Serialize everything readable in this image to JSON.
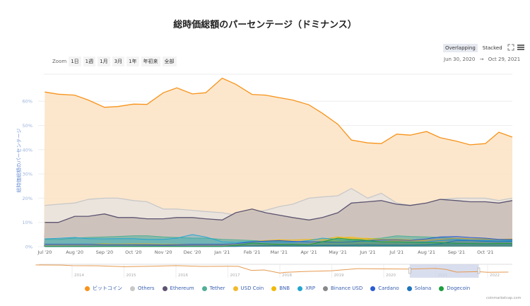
{
  "chart_data": {
    "type": "area",
    "title": "総時価総額のパーセンテージ（ドミナンス）",
    "ylabel": "総時価総額のパーセンテージ",
    "ylim": [
      0,
      70
    ],
    "yticks": [
      "0%",
      "10%",
      "20%",
      "30%",
      "40%",
      "50%",
      "60%"
    ],
    "ytick_values": [
      0,
      10,
      20,
      30,
      40,
      50,
      60
    ],
    "xlim": [
      "2020-06-30",
      "2021-10-29"
    ],
    "xticks": [
      {
        "date": "2020-07-01",
        "label": "Jul '20"
      },
      {
        "date": "2020-08-01",
        "label": "Aug '20"
      },
      {
        "date": "2020-09-01",
        "label": "Sep '20"
      },
      {
        "date": "2020-10-01",
        "label": "Oct '20"
      },
      {
        "date": "2020-11-01",
        "label": "Nov '20"
      },
      {
        "date": "2020-12-01",
        "label": "Dec '20"
      },
      {
        "date": "2021-01-01",
        "label": "Jan '21"
      },
      {
        "date": "2021-02-01",
        "label": "Feb '21"
      },
      {
        "date": "2021-03-01",
        "label": "Mar '21"
      },
      {
        "date": "2021-04-01",
        "label": "Apr '21"
      },
      {
        "date": "2021-05-01",
        "label": "May '21"
      },
      {
        "date": "2021-06-01",
        "label": "Jun '21"
      },
      {
        "date": "2021-07-01",
        "label": "Jul '21"
      },
      {
        "date": "2021-08-01",
        "label": "Aug '21"
      },
      {
        "date": "2021-09-01",
        "label": "Sep '21"
      },
      {
        "date": "2021-10-01",
        "label": "Oct '21"
      }
    ],
    "grid": true,
    "legend_position": "bottom",
    "x": [
      "2020-07-01",
      "2020-07-15",
      "2020-08-01",
      "2020-08-15",
      "2020-09-01",
      "2020-09-15",
      "2020-10-01",
      "2020-10-15",
      "2020-11-01",
      "2020-11-15",
      "2020-12-01",
      "2020-12-15",
      "2021-01-01",
      "2021-01-15",
      "2021-02-01",
      "2021-02-15",
      "2021-03-01",
      "2021-03-15",
      "2021-04-01",
      "2021-04-15",
      "2021-05-01",
      "2021-05-15",
      "2021-06-01",
      "2021-06-15",
      "2021-07-01",
      "2021-07-15",
      "2021-08-01",
      "2021-08-15",
      "2021-09-01",
      "2021-09-15",
      "2021-10-01",
      "2021-10-15",
      "2021-10-29"
    ],
    "series": [
      {
        "name": "ビットコイン",
        "color": "#f7931a",
        "fill": "#fbe3c4",
        "values": [
          63.8,
          62.9,
          62.5,
          60.5,
          57.5,
          57.8,
          58.8,
          58.7,
          63.5,
          65.5,
          63,
          63.5,
          69.5,
          67,
          62.8,
          62.5,
          61.5,
          60.5,
          58.5,
          55,
          50.5,
          44,
          42.8,
          42.5,
          46.4,
          46,
          47.5,
          45,
          43.5,
          42,
          42.5,
          47.2,
          45.2
        ]
      },
      {
        "name": "Others",
        "color": "#c8c8c8",
        "fill": "#e8e3df",
        "values": [
          17,
          17.5,
          18,
          19.5,
          20,
          20,
          19,
          18.5,
          15.5,
          15.5,
          15,
          14.5,
          14,
          13,
          14,
          15,
          16.5,
          17.5,
          20,
          20.5,
          21,
          24,
          20,
          22,
          18,
          17,
          18,
          19.5,
          20,
          20,
          20,
          19,
          20
        ]
      },
      {
        "name": "Ethereum",
        "color": "#5c5470",
        "fill": "#c9bdb6",
        "values": [
          10,
          10,
          12.5,
          12.5,
          13.5,
          12,
          12,
          11.5,
          11.5,
          12,
          12,
          11.5,
          11,
          14,
          15.5,
          14,
          13,
          12,
          11,
          12,
          14,
          18,
          18.5,
          19,
          17.5,
          17,
          18,
          19.5,
          19,
          18.5,
          18.5,
          18,
          19
        ]
      },
      {
        "name": "Tether",
        "color": "#50af95",
        "fill": "#7fb8a8",
        "values": [
          3,
          3,
          3.5,
          3.8,
          4,
          4.2,
          4.5,
          4.5,
          4,
          3.8,
          3.5,
          3.5,
          3,
          2.8,
          2.5,
          2.3,
          2.2,
          2,
          2,
          2.2,
          2.5,
          3,
          3.2,
          3.5,
          4.5,
          4.2,
          4,
          3.8,
          3.5,
          3.2,
          3,
          2.8,
          2.8
        ]
      },
      {
        "name": "USD Coin",
        "color": "#f3ba2f",
        "values": [
          0.5,
          0.6,
          0.7,
          0.8,
          1,
          1.1,
          1.2,
          1.2,
          1,
          1,
          0.9,
          0.8,
          0.7,
          0.6,
          0.6,
          0.7,
          0.8,
          0.9,
          1,
          2.5,
          3.5,
          4,
          3,
          2,
          2.5,
          2.5,
          2.3,
          2.2,
          2,
          1.9,
          1.8,
          1.6,
          1.5
        ]
      },
      {
        "name": "BNB",
        "color": "#f0b90b",
        "values": [
          1,
          1,
          1,
          1,
          1.2,
          1,
          1,
          1,
          1,
          1,
          1,
          1,
          0.8,
          1,
          2,
          2.5,
          2.8,
          2.7,
          3,
          3,
          4,
          3.5,
          3.4,
          3,
          3,
          2.8,
          2.7,
          3,
          3.5,
          3.3,
          3.2,
          3,
          3.2
        ]
      },
      {
        "name": "XRP",
        "color": "#23a6d0",
        "values": [
          3.2,
          3.4,
          3.8,
          3.3,
          3.2,
          3.3,
          3.3,
          3,
          3,
          3.5,
          5,
          4,
          2,
          1.8,
          2.1,
          2,
          1.9,
          1.8,
          2.5,
          3.5,
          3,
          2.4,
          2.2,
          2,
          1.9,
          1.8,
          2,
          2.5,
          3,
          2.6,
          2.5,
          2.4,
          2.5
        ]
      },
      {
        "name": "Binance USD",
        "color": "#888888",
        "values": [
          0.2,
          0.2,
          0.3,
          0.3,
          0.3,
          0.3,
          0.3,
          0.4,
          0.4,
          0.4,
          0.5,
          0.5,
          0.5,
          0.5,
          0.5,
          0.6,
          0.6,
          0.7,
          0.7,
          0.7,
          0.7,
          0.9,
          1,
          1,
          1,
          0.9,
          0.9,
          0.9,
          0.8,
          0.8,
          0.8,
          0.7,
          0.8
        ]
      },
      {
        "name": "Cardano",
        "color": "#2b5cd1",
        "values": [
          1,
          1,
          1,
          1,
          0.8,
          0.8,
          0.8,
          0.8,
          0.7,
          0.8,
          1,
          1,
          1,
          1.2,
          2,
          2.3,
          2.5,
          2.2,
          2,
          2,
          1.8,
          2,
          2.5,
          2.8,
          2.8,
          2.6,
          3.2,
          4,
          4.2,
          3.8,
          3.5,
          3,
          3
        ]
      },
      {
        "name": "Solana",
        "color": "#1e73be",
        "values": [
          0,
          0,
          0,
          0,
          0.1,
          0.1,
          0.1,
          0.1,
          0.1,
          0.1,
          0.1,
          0.1,
          0.1,
          0.1,
          0.2,
          0.3,
          0.4,
          0.3,
          0.3,
          0.5,
          0.5,
          0.5,
          0.6,
          0.5,
          0.5,
          0.5,
          0.7,
          1.2,
          2.5,
          2.5,
          2.2,
          2,
          2.2
        ]
      },
      {
        "name": "Dogecoin",
        "color": "#1e9e3e",
        "values": [
          0.1,
          0.1,
          0.1,
          0.1,
          0.1,
          0.1,
          0.1,
          0.1,
          0.1,
          0.1,
          0.1,
          0.1,
          0.1,
          0.5,
          1.5,
          1.2,
          1,
          1,
          0.8,
          2,
          3.5,
          3,
          2.5,
          2,
          2,
          1.8,
          1.7,
          1.6,
          1.4,
          1.3,
          1.2,
          1.3,
          1.3
        ]
      }
    ],
    "navigator": {
      "xticks": [
        "2014",
        "2015",
        "2016",
        "2017",
        "2018",
        "2019",
        "2020",
        "2021",
        "2022"
      ],
      "x": [
        2013.3,
        2013.8,
        2014.0,
        2014.5,
        2015.0,
        2015.5,
        2016.0,
        2016.5,
        2017.0,
        2017.2,
        2017.45,
        2017.7,
        2018.0,
        2018.1,
        2018.5,
        2019.0,
        2019.5,
        2020.0,
        2020.5,
        2021.0,
        2021.2,
        2021.4,
        2021.8,
        2022.0,
        2022.4
      ],
      "values": [
        95,
        94,
        90,
        89,
        82,
        86,
        90,
        84,
        86,
        85,
        55,
        58,
        35,
        40,
        47,
        52,
        68,
        66,
        64,
        70,
        62,
        42,
        45,
        41,
        42
      ],
      "ylim": [
        0,
        100
      ],
      "selected_range": [
        2020.5,
        2021.83
      ]
    }
  },
  "controls": {
    "zoom_label": "Zoom",
    "zoom_buttons": [
      "1日",
      "1週",
      "1月",
      "3月",
      "1年",
      "年初来",
      "全部"
    ],
    "modes": [
      "Overlapping",
      "Stacked"
    ],
    "active_mode": "Overlapping",
    "range_from": "Jun 30, 2020",
    "range_arrow": "→",
    "range_to": "Oct 29, 2021"
  },
  "credit": "coinmarketcap.com"
}
